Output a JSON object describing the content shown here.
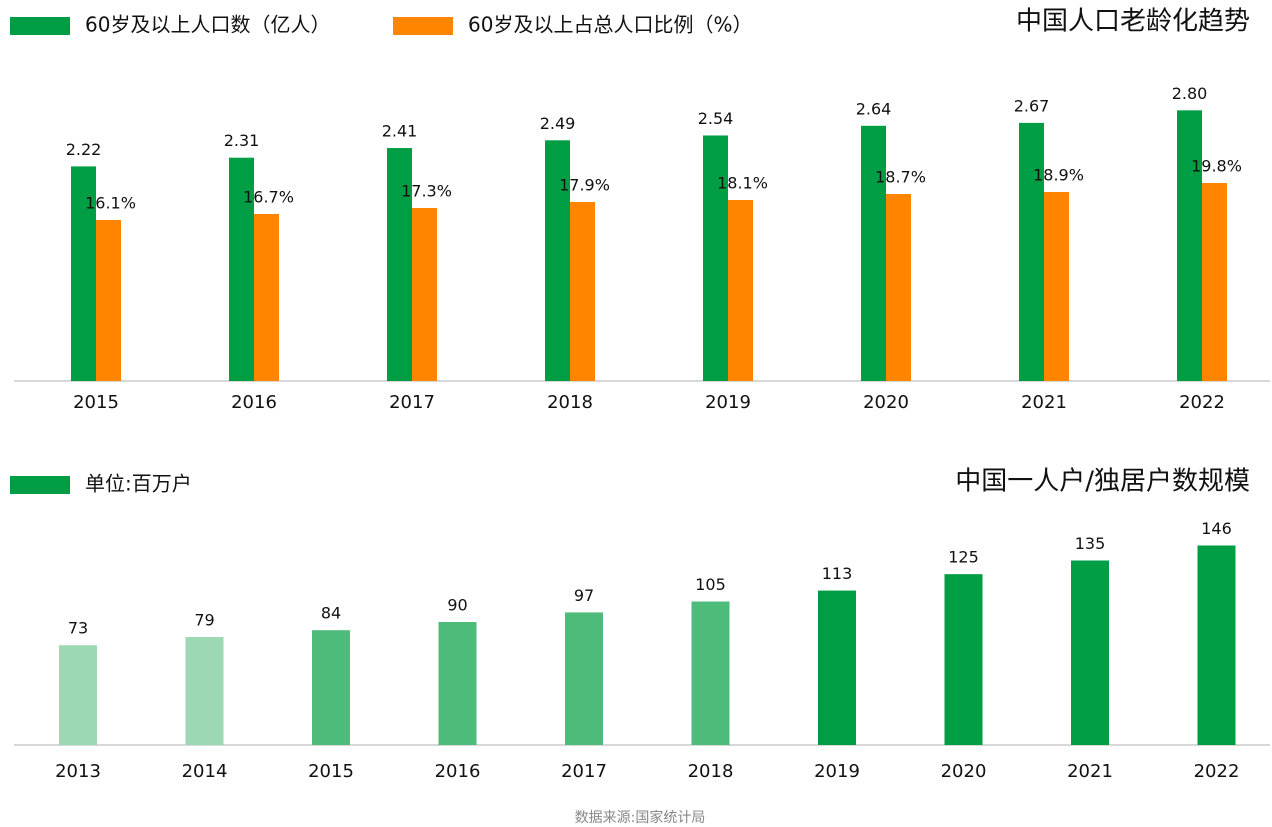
{
  "chart_data": [
    {
      "type": "grouped-bar",
      "title": "中国人口老龄化趋势",
      "categories": [
        "2015",
        "2016",
        "2017",
        "2018",
        "2019",
        "2020",
        "2021",
        "2022"
      ],
      "series": [
        {
          "name": "60岁及以上人口数（亿人）",
          "color": "#009e44",
          "values": [
            2.22,
            2.31,
            2.41,
            2.49,
            2.54,
            2.64,
            2.67,
            2.8
          ],
          "value_labels": [
            "2.22",
            "2.31",
            "2.41",
            "2.49",
            "2.54",
            "2.64",
            "2.67",
            "2.80"
          ]
        },
        {
          "name": "60岁及以上占总人口比例（%）",
          "color": "#ff8400",
          "axis": "y2",
          "values": [
            16.1,
            16.7,
            17.3,
            17.9,
            18.1,
            18.7,
            18.9,
            19.8
          ],
          "value_labels": [
            "16.1%",
            "16.7%",
            "17.3%",
            "17.9%",
            "18.1%",
            "18.7%",
            "18.9%",
            "19.8%"
          ]
        }
      ],
      "ylim": [
        0,
        3
      ],
      "y2lim": [
        0,
        29
      ]
    },
    {
      "type": "bar",
      "title": "中国一人户/独居户数规模",
      "categories": [
        "2013",
        "2014",
        "2015",
        "2016",
        "2017",
        "2018",
        "2019",
        "2020",
        "2021",
        "2022"
      ],
      "series": [
        {
          "name": "单位:百万户",
          "color": "#009e44",
          "values": [
            73,
            79,
            84,
            90,
            97,
            105,
            113,
            125,
            135,
            146
          ],
          "colors": [
            "#9bd8b3",
            "#9bd8b3",
            "#4dbb7a",
            "#4dbb7a",
            "#4dbb7a",
            "#4dbb7a",
            "#009e44",
            "#009e44",
            "#009e44",
            "#009e44"
          ]
        }
      ],
      "ylim": [
        0,
        150
      ]
    }
  ],
  "source": "数据来源:国家统计局"
}
